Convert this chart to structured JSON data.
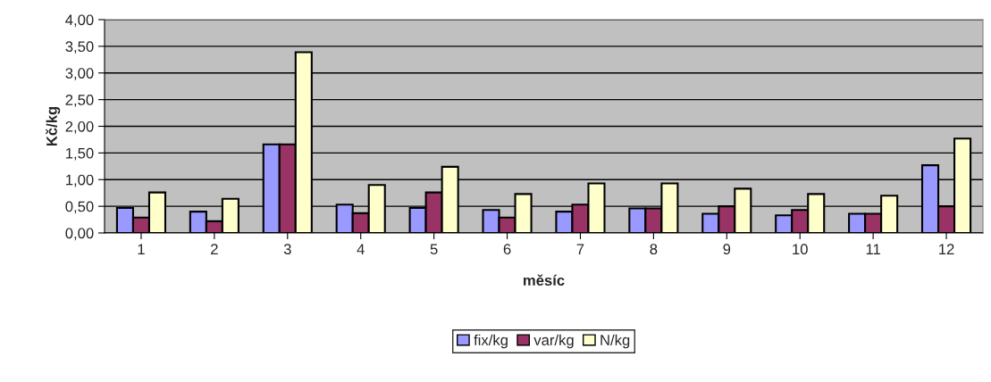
{
  "chart_data": {
    "type": "bar",
    "xlabel": "měsíc",
    "ylabel": "Kč/kg",
    "categories": [
      "1",
      "2",
      "3",
      "4",
      "5",
      "6",
      "7",
      "8",
      "9",
      "10",
      "11",
      "12"
    ],
    "series": [
      {
        "name": "fix/kg",
        "color": "#9999ff",
        "values": [
          0.47,
          0.4,
          1.66,
          0.53,
          0.47,
          0.43,
          0.4,
          0.46,
          0.36,
          0.33,
          0.36,
          1.27
        ]
      },
      {
        "name": "var/kg",
        "color": "#993366",
        "values": [
          0.29,
          0.22,
          1.66,
          0.37,
          0.76,
          0.29,
          0.53,
          0.46,
          0.5,
          0.43,
          0.36,
          0.5
        ]
      },
      {
        "name": "N/kg",
        "color": "#ffffcc",
        "values": [
          0.76,
          0.64,
          3.39,
          0.9,
          1.24,
          0.73,
          0.93,
          0.93,
          0.83,
          0.73,
          0.7,
          1.77
        ]
      }
    ],
    "ylim": [
      0,
      4
    ],
    "yticks": [
      {
        "value": 0,
        "label": "0,00"
      },
      {
        "value": 0.5,
        "label": "0,50"
      },
      {
        "value": 1,
        "label": "1,00"
      },
      {
        "value": 1.5,
        "label": "1,50"
      },
      {
        "value": 2,
        "label": "2,00"
      },
      {
        "value": 2.5,
        "label": "2,50"
      },
      {
        "value": 3,
        "label": "3,00"
      },
      {
        "value": 3.5,
        "label": "3,50"
      },
      {
        "value": 4,
        "label": "4,00"
      }
    ],
    "grid": "y",
    "legend": "bottom"
  }
}
